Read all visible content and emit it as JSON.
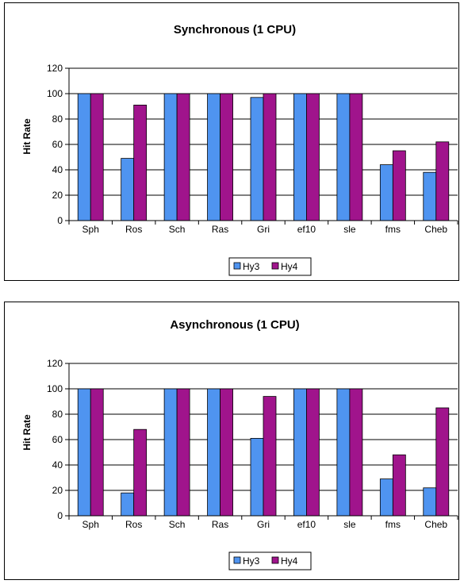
{
  "colors": {
    "hy3": "#4f94f0",
    "hy4": "#a0148c",
    "grid": "#000000"
  },
  "chart_data": [
    {
      "type": "bar",
      "title": "Synchronous (1 CPU)",
      "xlabel": "",
      "ylabel": "Hit Rate",
      "ylim": [
        0,
        120
      ],
      "yticks": [
        "0",
        "20",
        "40",
        "60",
        "80",
        "100",
        "120"
      ],
      "grid": true,
      "legend_position": "bottom",
      "categories": [
        "Sph",
        "Ros",
        "Sch",
        "Ras",
        "Gri",
        "ef10",
        "sle",
        "fms",
        "Cheb"
      ],
      "series": [
        {
          "name": "Hy3",
          "values": [
            100,
            49,
            100,
            100,
            97,
            100,
            100,
            44,
            38
          ]
        },
        {
          "name": "Hy4",
          "values": [
            100,
            91,
            100,
            100,
            100,
            100,
            100,
            55,
            62
          ]
        }
      ]
    },
    {
      "type": "bar",
      "title": "Asynchronous (1 CPU)",
      "xlabel": "",
      "ylabel": "Hit Rate",
      "ylim": [
        0,
        120
      ],
      "yticks": [
        "0",
        "20",
        "40",
        "60",
        "80",
        "100",
        "120"
      ],
      "grid": true,
      "legend_position": "bottom",
      "categories": [
        "Sph",
        "Ros",
        "Sch",
        "Ras",
        "Gri",
        "ef10",
        "sle",
        "fms",
        "Cheb"
      ],
      "series": [
        {
          "name": "Hy3",
          "values": [
            100,
            18,
            100,
            100,
            61,
            100,
            100,
            29,
            22
          ]
        },
        {
          "name": "Hy4",
          "values": [
            100,
            68,
            100,
            100,
            94,
            100,
            100,
            48,
            85
          ]
        }
      ]
    }
  ]
}
